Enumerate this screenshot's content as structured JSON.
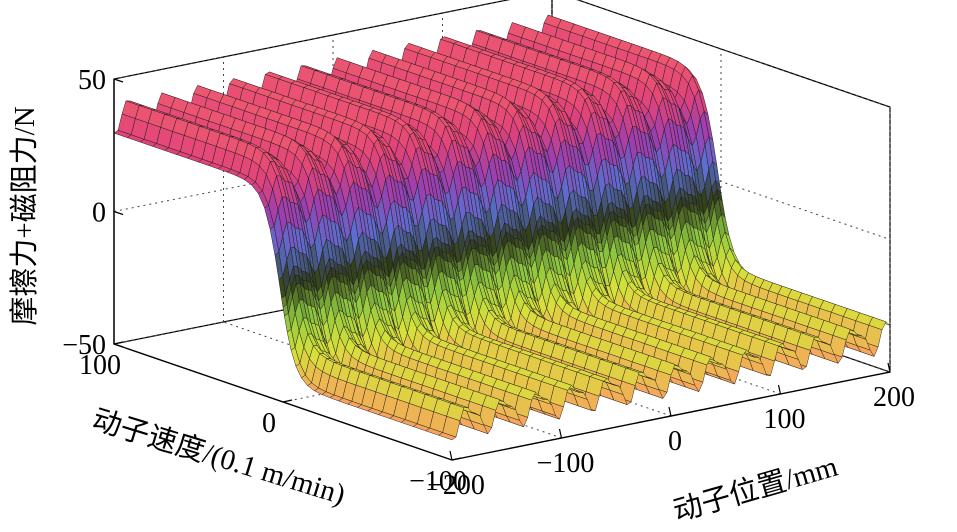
{
  "chart_data": {
    "type": "surface",
    "title": "",
    "zlabel": "摩擦力+磁阻力/N",
    "xlabel": "动子速度/(0.1 m/min)",
    "ylabel": "动子位置/mm",
    "x_range": [
      -100,
      100
    ],
    "y_range": [
      -200,
      200
    ],
    "z_range": [
      -50,
      50
    ],
    "x_ticks": [
      {
        "value": 100,
        "label": "100"
      },
      {
        "value": 0,
        "label": "0"
      },
      {
        "value": -100,
        "label": "−100"
      }
    ],
    "y_ticks": [
      {
        "value": -200,
        "label": "−200"
      },
      {
        "value": -100,
        "label": "−100"
      },
      {
        "value": 0,
        "label": "0"
      },
      {
        "value": 100,
        "label": "100"
      },
      {
        "value": 200,
        "label": "200"
      }
    ],
    "z_ticks": [
      {
        "value": 50,
        "label": "50"
      },
      {
        "value": 0,
        "label": "0"
      },
      {
        "value": -50,
        "label": "−50"
      }
    ],
    "grid": true,
    "colormap": [
      "#f7a35c",
      "#d7e23a",
      "#8cc63f",
      "#2f3a1a",
      "#5a6fd0",
      "#9a3fb0",
      "#e0427a",
      "#f05a6e"
    ],
    "surface_model": {
      "friction_high": 36,
      "friction_low": -36,
      "ripple_amplitude": 5,
      "ripple_period_mm": 32
    }
  }
}
